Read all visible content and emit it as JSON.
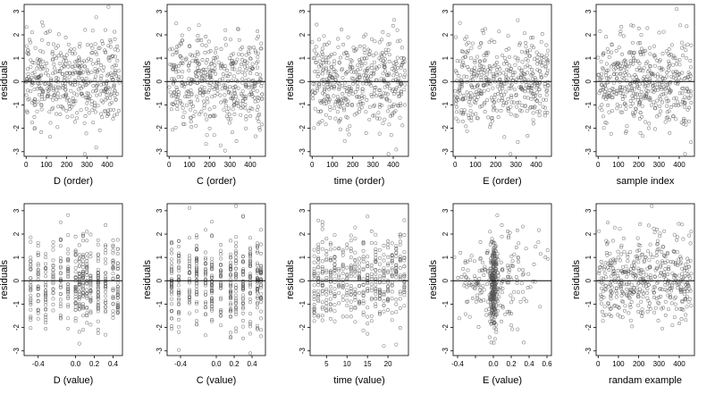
{
  "figure": {
    "rows": 2,
    "cols": 5,
    "point_color": "#555555",
    "zero_line_color": "#000000"
  },
  "chart_data": [
    {
      "type": "scatter",
      "xlabel": "D (order)",
      "ylabel": "residuals",
      "xlim": [
        -10,
        475
      ],
      "ylim": [
        -3.2,
        3.3
      ],
      "xticks": [
        0,
        100,
        200,
        300,
        400
      ],
      "yticks": [
        -3,
        -2,
        -1,
        0,
        1,
        2,
        3
      ],
      "hline": 0,
      "points": [],
      "dist": {
        "kind": "uniform",
        "range": [
          0,
          460
        ],
        "n": 460,
        "seed": 11
      }
    },
    {
      "type": "scatter",
      "xlabel": "C (order)",
      "ylabel": "residuals",
      "xlim": [
        -10,
        475
      ],
      "ylim": [
        -3.2,
        3.3
      ],
      "xticks": [
        0,
        100,
        200,
        300,
        400
      ],
      "yticks": [
        -3,
        -2,
        -1,
        0,
        1,
        2,
        3
      ],
      "hline": 0,
      "points": [],
      "dist": {
        "kind": "uniform",
        "range": [
          0,
          460
        ],
        "n": 460,
        "seed": 12
      }
    },
    {
      "type": "scatter",
      "xlabel": "time (order)",
      "ylabel": "residuals",
      "xlim": [
        -10,
        475
      ],
      "ylim": [
        -3.2,
        3.3
      ],
      "xticks": [
        0,
        100,
        200,
        300,
        400
      ],
      "yticks": [
        -3,
        -2,
        -1,
        0,
        1,
        2,
        3
      ],
      "hline": 0,
      "points": [],
      "dist": {
        "kind": "uniform",
        "range": [
          0,
          460
        ],
        "n": 460,
        "seed": 13
      }
    },
    {
      "type": "scatter",
      "xlabel": "E (order)",
      "ylabel": "residuals",
      "xlim": [
        -10,
        475
      ],
      "ylim": [
        -3.2,
        3.3
      ],
      "xticks": [
        0,
        100,
        200,
        300,
        400
      ],
      "yticks": [
        -3,
        -2,
        -1,
        0,
        1,
        2,
        3
      ],
      "hline": 0,
      "points": [],
      "dist": {
        "kind": "uniform",
        "range": [
          0,
          460
        ],
        "n": 460,
        "seed": 14
      }
    },
    {
      "type": "scatter",
      "xlabel": "sample index",
      "ylabel": "residuals",
      "xlim": [
        -10,
        475
      ],
      "ylim": [
        -3.2,
        3.3
      ],
      "xticks": [
        0,
        100,
        200,
        300,
        400
      ],
      "yticks": [
        -3,
        -2,
        -1,
        0,
        1,
        2,
        3
      ],
      "hline": 0,
      "points": [],
      "dist": {
        "kind": "uniform",
        "range": [
          0,
          460
        ],
        "n": 460,
        "seed": 15
      }
    },
    {
      "type": "scatter",
      "xlabel": "D (value)",
      "ylabel": "residuals",
      "xlim": [
        -0.55,
        0.5
      ],
      "ylim": [
        -3.2,
        3.3
      ],
      "xticks": [
        -0.4,
        0.0,
        0.2,
        0.4
      ],
      "xtick_labels": [
        "-0.4",
        "0.0",
        "0.2",
        "0.4"
      ],
      "yticks": [
        -3,
        -2,
        -1,
        0,
        1,
        2,
        3
      ],
      "hline": 0,
      "points": [],
      "dist": {
        "kind": "discrete",
        "values": [
          -0.48,
          -0.4,
          -0.32,
          -0.24,
          -0.16,
          -0.08,
          0.0,
          0.04,
          0.08,
          0.12,
          0.16,
          0.24,
          0.32,
          0.4,
          0.45
        ],
        "n": 460,
        "seed": 21
      }
    },
    {
      "type": "scatter",
      "xlabel": "C (value)",
      "ylabel": "residuals",
      "xlim": [
        -0.55,
        0.55
      ],
      "ylim": [
        -3.2,
        3.3
      ],
      "xticks": [
        -0.4,
        0.0,
        0.2,
        0.4
      ],
      "xtick_labels": [
        "-0.4",
        "0.0",
        "0.2",
        "0.4"
      ],
      "yticks": [
        -3,
        -2,
        -1,
        0,
        1,
        2,
        3
      ],
      "hline": 0,
      "points": [],
      "dist": {
        "kind": "discrete",
        "values": [
          -0.5,
          -0.42,
          -0.3,
          -0.22,
          -0.12,
          -0.05,
          0.05,
          0.16,
          0.22,
          0.3,
          0.38,
          0.46,
          0.5
        ],
        "n": 460,
        "seed": 22
      }
    },
    {
      "type": "scatter",
      "xlabel": "time (value)",
      "ylabel": "residuals",
      "xlim": [
        1,
        25
      ],
      "ylim": [
        -3.2,
        3.3
      ],
      "xticks": [
        5,
        10,
        15,
        20
      ],
      "yticks": [
        -3,
        -2,
        -1,
        0,
        1,
        2,
        3
      ],
      "hline": 0,
      "points": [],
      "dist": {
        "kind": "discrete",
        "values": [
          2,
          3,
          4,
          5,
          6,
          7,
          8,
          9,
          10,
          11,
          12,
          13,
          14,
          15,
          16,
          17,
          18,
          19,
          20,
          21,
          22,
          23,
          24
        ],
        "n": 460,
        "seed": 23
      }
    },
    {
      "type": "scatter",
      "xlabel": "E (value)",
      "ylabel": "residuals",
      "xlim": [
        -0.45,
        0.65
      ],
      "ylim": [
        -3.2,
        3.3
      ],
      "xticks": [
        -0.4,
        -0.2,
        0.0,
        0.2,
        0.4,
        0.6
      ],
      "xtick_labels": [
        "-0.4",
        "",
        "0.0",
        "0.2",
        "0.4",
        "0.6"
      ],
      "yticks": [
        -3,
        -2,
        -1,
        0,
        1,
        2,
        3
      ],
      "hline": 0,
      "points": [],
      "dist": {
        "kind": "peaked",
        "center": 0.0,
        "spread": 0.25,
        "n": 460,
        "seed": 24
      }
    },
    {
      "type": "scatter",
      "xlabel": "randam example",
      "ylabel": "residuals",
      "xlim": [
        -10,
        475
      ],
      "ylim": [
        -3.2,
        3.3
      ],
      "xticks": [
        0,
        100,
        200,
        300,
        400
      ],
      "yticks": [
        -3,
        -2,
        -1,
        0,
        1,
        2,
        3
      ],
      "hline": 0,
      "points": [],
      "dist": {
        "kind": "uniform",
        "range": [
          0,
          460
        ],
        "n": 460,
        "seed": 25
      }
    }
  ]
}
